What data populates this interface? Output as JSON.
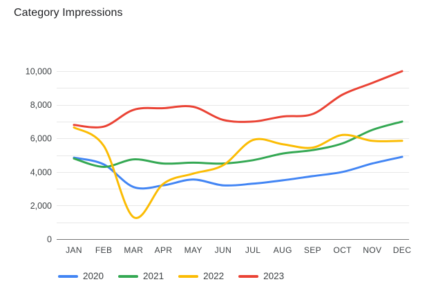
{
  "header": {
    "title": "Category Impressions"
  },
  "colors": {
    "background": "#ffffff",
    "title_text": "#202124",
    "axis_text": "#3c4043",
    "legend_text": "#3c4043",
    "gridline": "#e8e8e8",
    "axis_line": "#757575",
    "series_blue": "#4285F4",
    "series_green": "#34A853",
    "series_yellow": "#FBBC04",
    "series_red": "#EA4335"
  },
  "chart_data": {
    "type": "line",
    "title": "Category Impressions",
    "xlabel": "",
    "ylabel": "",
    "categories": [
      "JAN",
      "FEB",
      "MAR",
      "APR",
      "MAY",
      "JUN",
      "JUL",
      "AUG",
      "SEP",
      "OCT",
      "NOV",
      "DEC"
    ],
    "series": [
      {
        "name": "2020",
        "color": "#4285F4",
        "values": [
          4850,
          4450,
          3100,
          3200,
          3550,
          3200,
          3300,
          3500,
          3750,
          4000,
          4500,
          4900
        ]
      },
      {
        "name": "2021",
        "color": "#34A853",
        "values": [
          4800,
          4300,
          4750,
          4500,
          4550,
          4500,
          4700,
          5100,
          5300,
          5700,
          6500,
          7000
        ]
      },
      {
        "name": "2022",
        "color": "#FBBC04",
        "values": [
          6650,
          5550,
          1300,
          3300,
          3900,
          4400,
          5900,
          5650,
          5450,
          6200,
          5850,
          5850
        ]
      },
      {
        "name": "2023",
        "color": "#EA4335",
        "values": [
          6800,
          6700,
          7700,
          7800,
          7880,
          7100,
          7000,
          7300,
          7450,
          8600,
          9300,
          10000
        ]
      }
    ],
    "ylim": [
      0,
      10000
    ],
    "y_minor_step": 1000,
    "y_major_ticks": [
      0,
      2000,
      4000,
      6000,
      8000,
      10000
    ],
    "y_tick_labels": [
      "0",
      "2,000",
      "4,000",
      "6,000",
      "8,000",
      "10,000"
    ],
    "grid": true,
    "smooth": true,
    "legend_position": "bottom"
  }
}
